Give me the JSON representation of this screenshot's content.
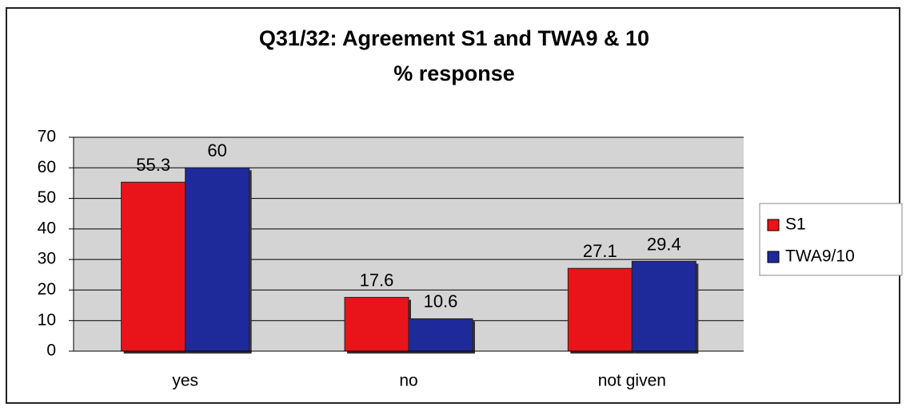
{
  "chart_data": {
    "type": "bar",
    "title": "Q31/32: Agreement S1 and TWA9 & 10",
    "subtitle": "% response",
    "categories": [
      "yes",
      "no",
      "not given"
    ],
    "series": [
      {
        "name": "S1",
        "color": "#e8141a",
        "values": [
          55.3,
          17.6,
          27.1
        ]
      },
      {
        "name": "TWA9/10",
        "color": "#1e2a9a",
        "values": [
          60,
          10.6,
          29.4
        ]
      }
    ],
    "ylim": [
      0,
      70
    ],
    "yticks": [
      0,
      10,
      20,
      30,
      40,
      50,
      60,
      70
    ],
    "grid": true,
    "legend": "right"
  }
}
